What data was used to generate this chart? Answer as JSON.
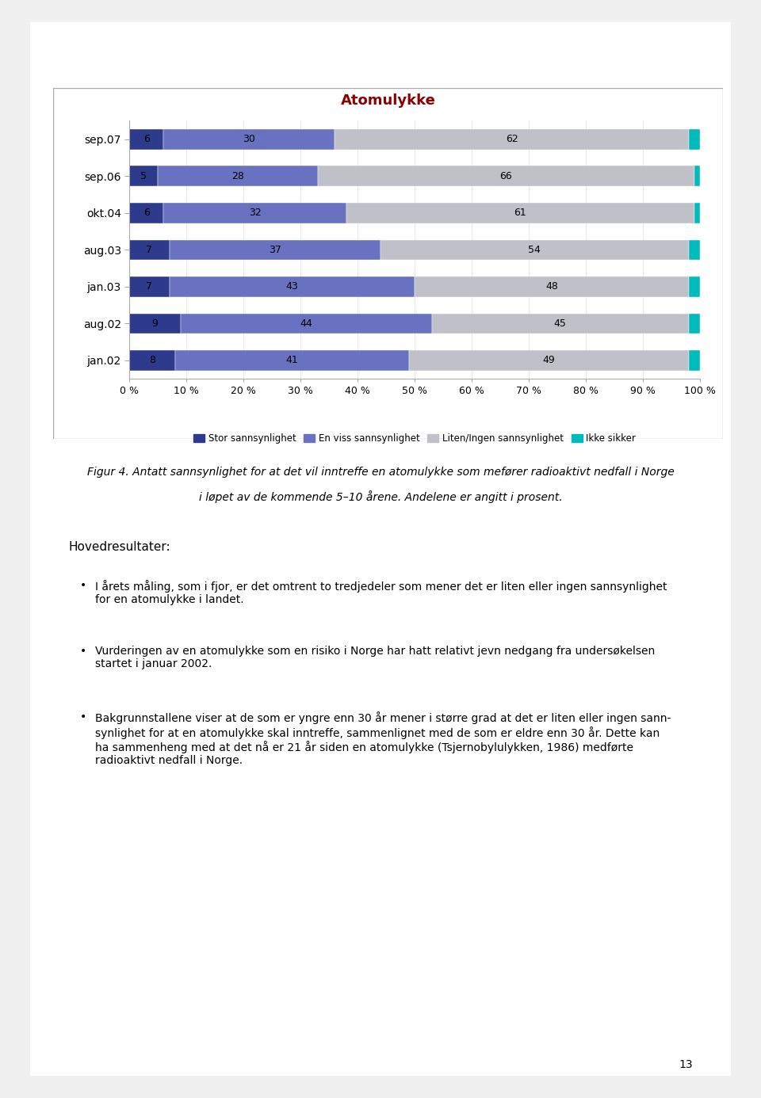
{
  "title": "Atomulykke",
  "title_color": "#8B0000",
  "categories": [
    "sep.07",
    "sep.06",
    "okt.04",
    "aug.03",
    "jan.03",
    "aug.02",
    "jan.02"
  ],
  "series": {
    "Stor sannsynlighet": [
      6,
      5,
      6,
      7,
      7,
      9,
      8
    ],
    "En viss sannsynlighet": [
      30,
      28,
      32,
      37,
      43,
      44,
      41
    ],
    "Liten/Ingen sannsynlighet": [
      62,
      66,
      61,
      54,
      48,
      45,
      49
    ],
    "Ikke sikker": [
      2,
      1,
      1,
      2,
      2,
      2,
      2
    ]
  },
  "colors": {
    "Stor sannsynlighet": "#2E3A8C",
    "En viss sannsynlighet": "#6872C0",
    "Liten/Ingen sannsynlighet": "#C0C0C8",
    "Ikke sikker": "#00BBBB"
  },
  "xlim": [
    0,
    100
  ],
  "xtick_labels": [
    "0 %",
    "10 %",
    "20 %",
    "30 %",
    "40 %",
    "50 %",
    "60 %",
    "70 %",
    "80 %",
    "90 %",
    "100 %"
  ],
  "xtick_values": [
    0,
    10,
    20,
    30,
    40,
    50,
    60,
    70,
    80,
    90,
    100
  ],
  "figure_bg": "#F0F0F0",
  "chart_bg": "#FFFFFF",
  "bar_height": 0.55,
  "legend_labels": [
    "Stor sannsynlighet",
    "En viss sannsynlighet",
    "Liten/Ingen sannsynlighet",
    "Ikke sikker"
  ],
  "figcaption_line1": "Figur 4. Antatt sannsynlighet for at det vil inntreffe en atomulykke som mefører radioaktivt nedfall i Norge",
  "figcaption_line2": "i løpet av de kommende 5–10 årene. Andelene er angitt i prosent.",
  "bullet_header": "Hovedresultater:",
  "bullet_points": [
    "I årets måling, som i fjor, er det omtrent to tredjedeler som mener det er liten eller ingen sannsynlighet\nfor en atomulykke i landet.",
    "Vurderingen av en atomulykke som en risiko i Norge har hatt relativt jevn nedgang fra undersøkelsen\nstartet i januar 2002.",
    "Bakgrunnstallene viser at de som er yngre enn 30 år mener i større grad at det er liten eller ingen sann-\nsynlighet for at en atomulykke skal inntreffe, sammenlignet med de som er eldre enn 30 år. Dette kan\nha sammenheng med at det nå er 21 år siden en atomulykke (Tsjernobylulykken, 1986) medførte\nradioaktivt nedfall i Norge."
  ],
  "page_number": "13"
}
